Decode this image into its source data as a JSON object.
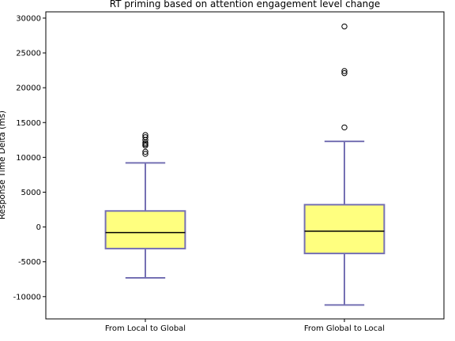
{
  "chart_data": {
    "type": "boxplot",
    "title": "RT priming based on attention engagement level change",
    "xlabel": "",
    "ylabel": "Response Time Delta (ms)",
    "ylim": [
      -13200,
      30900
    ],
    "yticks": [
      -10000,
      -5000,
      0,
      5000,
      10000,
      15000,
      20000,
      25000,
      30000
    ],
    "grid": false,
    "categories": [
      "From Local to Global",
      "From Global to Local"
    ],
    "boxes": [
      {
        "name": "From Local to Global",
        "whisker_low": -7300,
        "q1": -3100,
        "median": -800,
        "q3": 2300,
        "whisker_high": 9200,
        "outliers": [
          10500,
          10800,
          11700,
          11900,
          12100,
          12500,
          12900,
          13200
        ]
      },
      {
        "name": "From Global to Local",
        "whisker_low": -11200,
        "q1": -3800,
        "median": -600,
        "q3": 3200,
        "whisker_high": 12300,
        "outliers": [
          14300,
          22100,
          22400,
          28800
        ]
      }
    ],
    "colors": {
      "box_fill": "#ffff7f",
      "box_edge": "#7570b3",
      "median": "#000000",
      "axis": "#000000"
    }
  }
}
